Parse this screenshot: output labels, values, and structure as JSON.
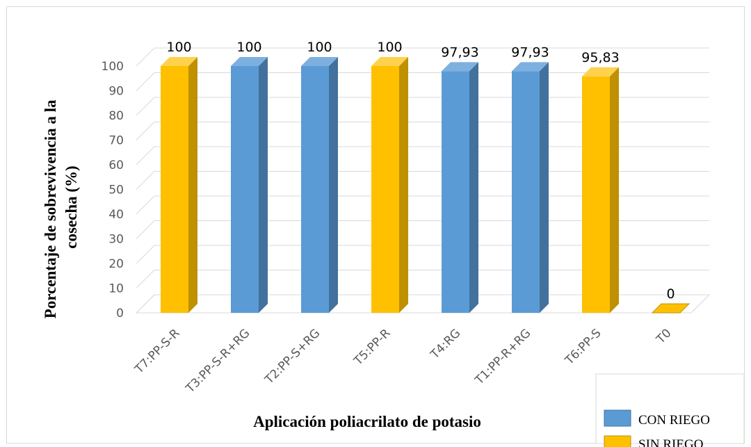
{
  "chart_data": {
    "type": "bar",
    "categories": [
      "T7:PP-S-R",
      "T3:PP-S-R+RG",
      "T2:PP-S+RG",
      "T5:PP-R",
      "T4:RG",
      "T1:PP-R+RG",
      "T6:PP-S",
      "T0"
    ],
    "values": [
      100,
      100,
      100,
      100,
      97.93,
      97.93,
      95.83,
      0
    ],
    "value_labels": [
      "100",
      "100",
      "100",
      "100",
      "97,93",
      "97,93",
      "95,83",
      "0"
    ],
    "groups": [
      "SIN RIEGO",
      "CON RIEGO",
      "CON RIEGO",
      "SIN RIEGO",
      "CON RIEGO",
      "CON RIEGO",
      "SIN RIEGO",
      "SIN RIEGO"
    ],
    "xlabel": "Aplicación poliacrilato de potasio",
    "ylabel_lines": [
      "Porcentaje de sobrevivencia a la",
      "cosecha (%)"
    ],
    "ylim": [
      0,
      100
    ],
    "yticks": [
      "0",
      "10",
      "20",
      "30",
      "40",
      "50",
      "60",
      "70",
      "80",
      "90",
      "100"
    ],
    "grid": true,
    "legend_position": "bottom-right",
    "legend": [
      {
        "label": "CON RIEGO",
        "color": "#5b9bd5"
      },
      {
        "label": "SIN RIEGO",
        "color": "#ffc000"
      }
    ],
    "colors": {
      "CON RIEGO": {
        "front": "#5b9bd5",
        "side": "#41719c",
        "top": "#7eb0df"
      },
      "SIN RIEGO": {
        "front": "#ffc000",
        "side": "#bf9000",
        "top": "#ffd24d"
      }
    }
  }
}
